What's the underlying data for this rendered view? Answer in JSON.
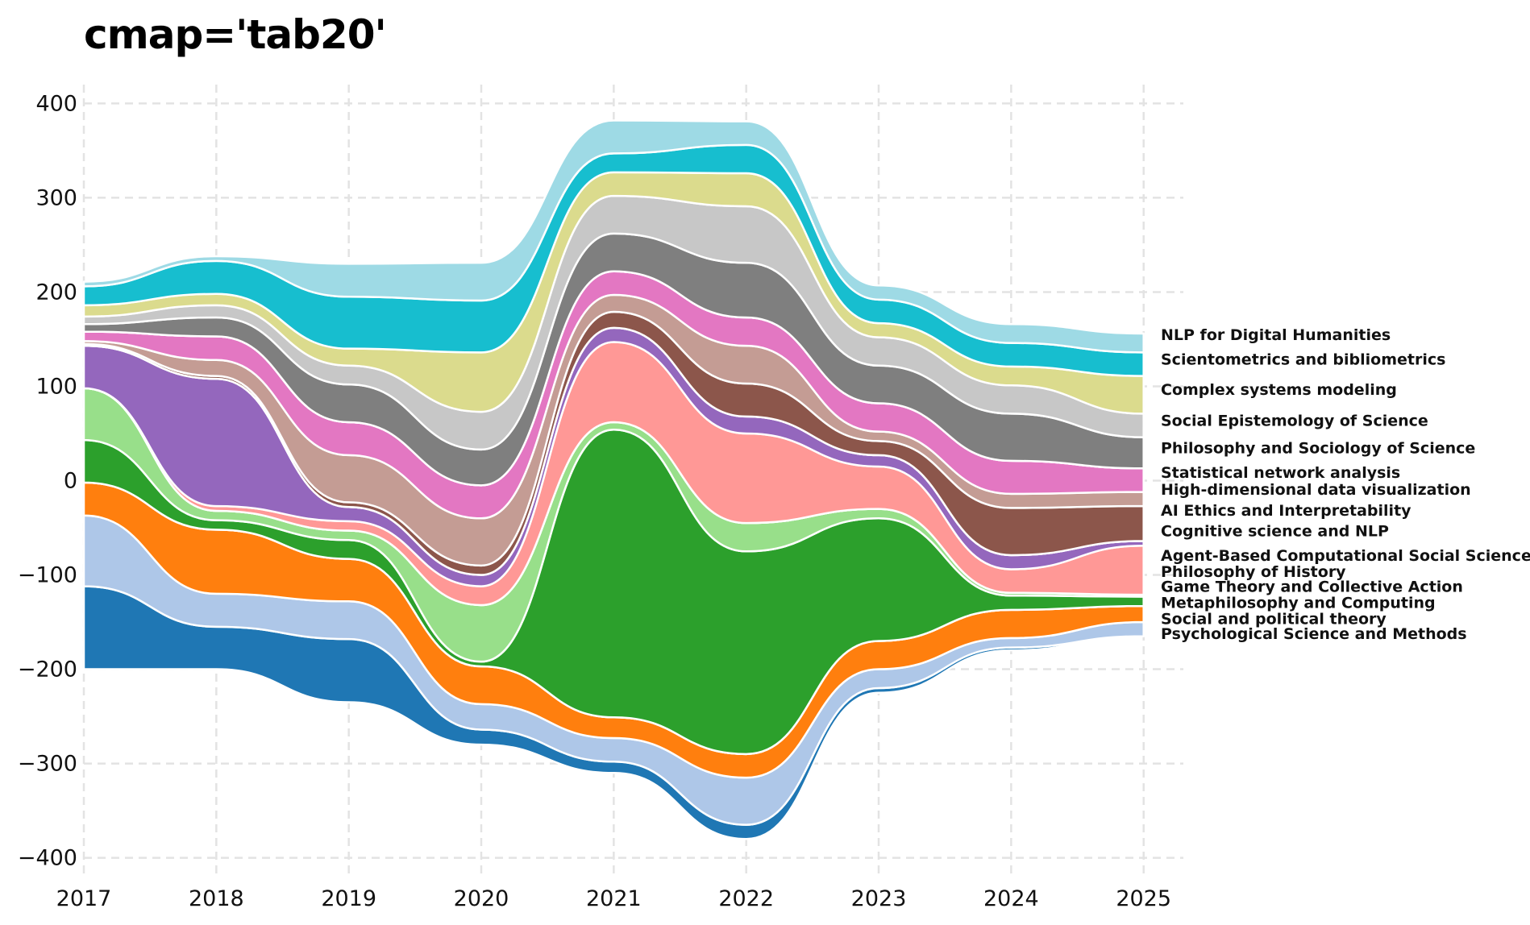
{
  "chart_data": {
    "type": "area",
    "title": "cmap='tab20'",
    "xlabel": "",
    "ylabel": "",
    "x": [
      2017,
      2018,
      2019,
      2020,
      2021,
      2022,
      2023,
      2024,
      2025
    ],
    "xlim": [
      2017,
      2025.3
    ],
    "ylim": [
      -420,
      420
    ],
    "yticks": [
      400,
      300,
      200,
      100,
      0,
      -100,
      -200,
      -300,
      -400
    ],
    "ytick_labels": [
      "400",
      "300",
      "200",
      "100",
      "0",
      "−100",
      "−200",
      "−300",
      "−400"
    ],
    "xticks": [
      2017,
      2018,
      2019,
      2020,
      2021,
      2022,
      2023,
      2024,
      2025
    ],
    "xtick_labels": [
      "2017",
      "2018",
      "2019",
      "2020",
      "2021",
      "2022",
      "2023",
      "2024",
      "2025"
    ],
    "grid": true,
    "legend": "labels at right end of each stream",
    "baseline": [
      -200,
      -200,
      -235,
      -280,
      -310,
      -380,
      -225,
      -180,
      -165
    ],
    "series": [
      {
        "name": "Psychological Science and Methods",
        "color": "#1f77b4",
        "values": [
          88,
          45,
          67,
          16,
          12,
          15,
          5,
          3,
          0
        ]
      },
      {
        "name": "Social and political theory",
        "color": "#aec7e8",
        "values": [
          75,
          35,
          40,
          27,
          25,
          50,
          20,
          10,
          15
        ]
      },
      {
        "name": "Metaphilosophy and Computing",
        "color": "#ff7f0e",
        "values": [
          35,
          68,
          45,
          40,
          22,
          25,
          30,
          30,
          17
        ]
      },
      {
        "name": "Game Theory and Collective Action",
        "color": "#ffbb78",
        "values": [
          0,
          0,
          0,
          0,
          0,
          0,
          0,
          0,
          0
        ]
      },
      {
        "name": "Philosophy of History",
        "color": "#2ca02c",
        "values": [
          45,
          10,
          20,
          5,
          305,
          215,
          130,
          15,
          10
        ]
      },
      {
        "name": "Agent-Based Computational Social Science",
        "color": "#98df8a",
        "values": [
          55,
          10,
          10,
          60,
          8,
          30,
          10,
          3,
          2
        ]
      },
      {
        "name": "Cognitive science and NLP",
        "color": "#d62728",
        "values": [
          0,
          0,
          0,
          0,
          0,
          0,
          0,
          0,
          0
        ]
      },
      {
        "name": "AI Ethics and Interpretability",
        "color": "#ff9896",
        "values": [
          0,
          5,
          10,
          20,
          85,
          95,
          45,
          25,
          52
        ]
      },
      {
        "name": "High-dimensional data visualization",
        "color": "#9467bd",
        "values": [
          45,
          135,
          15,
          12,
          15,
          18,
          12,
          15,
          5
        ]
      },
      {
        "name": "Statistical network analysis",
        "color": "#c5b0d5",
        "values": [
          0,
          0,
          0,
          0,
          0,
          0,
          0,
          0,
          0
        ]
      },
      {
        "name": "Philosophy and Sociology of Science",
        "color": "#8c564b",
        "values": [
          2,
          3,
          5,
          10,
          17,
          35,
          15,
          50,
          37
        ]
      },
      {
        "name": "Social Epistemology of Science",
        "color": "#c49c94",
        "values": [
          3,
          17,
          50,
          50,
          18,
          40,
          10,
          15,
          15
        ]
      },
      {
        "name": "Complex systems modeling",
        "color": "#e377c2",
        "values": [
          10,
          25,
          35,
          35,
          25,
          30,
          30,
          35,
          25
        ]
      },
      {
        "name": "Scientometrics and bibliometrics",
        "color": "#f7b6d2",
        "values": [
          0,
          0,
          0,
          0,
          0,
          0,
          0,
          0,
          0
        ]
      },
      {
        "name": "NLP for Digital Humanities",
        "color": "#7f7f7f",
        "values": [
          8,
          20,
          40,
          38,
          40,
          58,
          40,
          50,
          33
        ]
      }
    ],
    "extra_series": [
      {
        "name": "",
        "color": "#c7c7c7",
        "values": [
          8,
          13,
          20,
          40,
          40,
          60,
          30,
          30,
          25
        ]
      },
      {
        "name": "",
        "color": "#dbdb8d",
        "values": [
          12,
          12,
          18,
          63,
          25,
          35,
          15,
          20,
          40
        ]
      },
      {
        "name": "",
        "color": "#17becf",
        "values": [
          20,
          35,
          55,
          55,
          20,
          30,
          25,
          25,
          25
        ]
      },
      {
        "name": "",
        "color": "#9edae5",
        "values": [
          5,
          5,
          35,
          40,
          35,
          25,
          15,
          20,
          20
        ]
      }
    ],
    "label_layout": [
      {
        "text": "NLP for Digital Humanities",
        "y": 155
      },
      {
        "text": "Scientometrics and bibliometrics",
        "y": 129
      },
      {
        "text": "Complex systems modeling",
        "y": 97
      },
      {
        "text": "Social Epistemology of Science",
        "y": 64
      },
      {
        "text": "Philosophy and Sociology of Science",
        "y": 35
      },
      {
        "text": "Statistical network analysis",
        "y": 9
      },
      {
        "text": "High-dimensional data visualization",
        "y": -9
      },
      {
        "text": "AI Ethics and Interpretability",
        "y": -31
      },
      {
        "text": "Cognitive science and NLP",
        "y": -53
      },
      {
        "text": "Agent-Based Computational Social Science",
        "y": -79
      },
      {
        "text": "Philosophy of History",
        "y": -96
      },
      {
        "text": "Game Theory and Collective Action",
        "y": -112
      },
      {
        "text": "Metaphilosophy and Computing",
        "y": -129
      },
      {
        "text": "Social and political theory",
        "y": -146
      },
      {
        "text": "Psychological Science and Methods",
        "y": -162
      }
    ]
  }
}
